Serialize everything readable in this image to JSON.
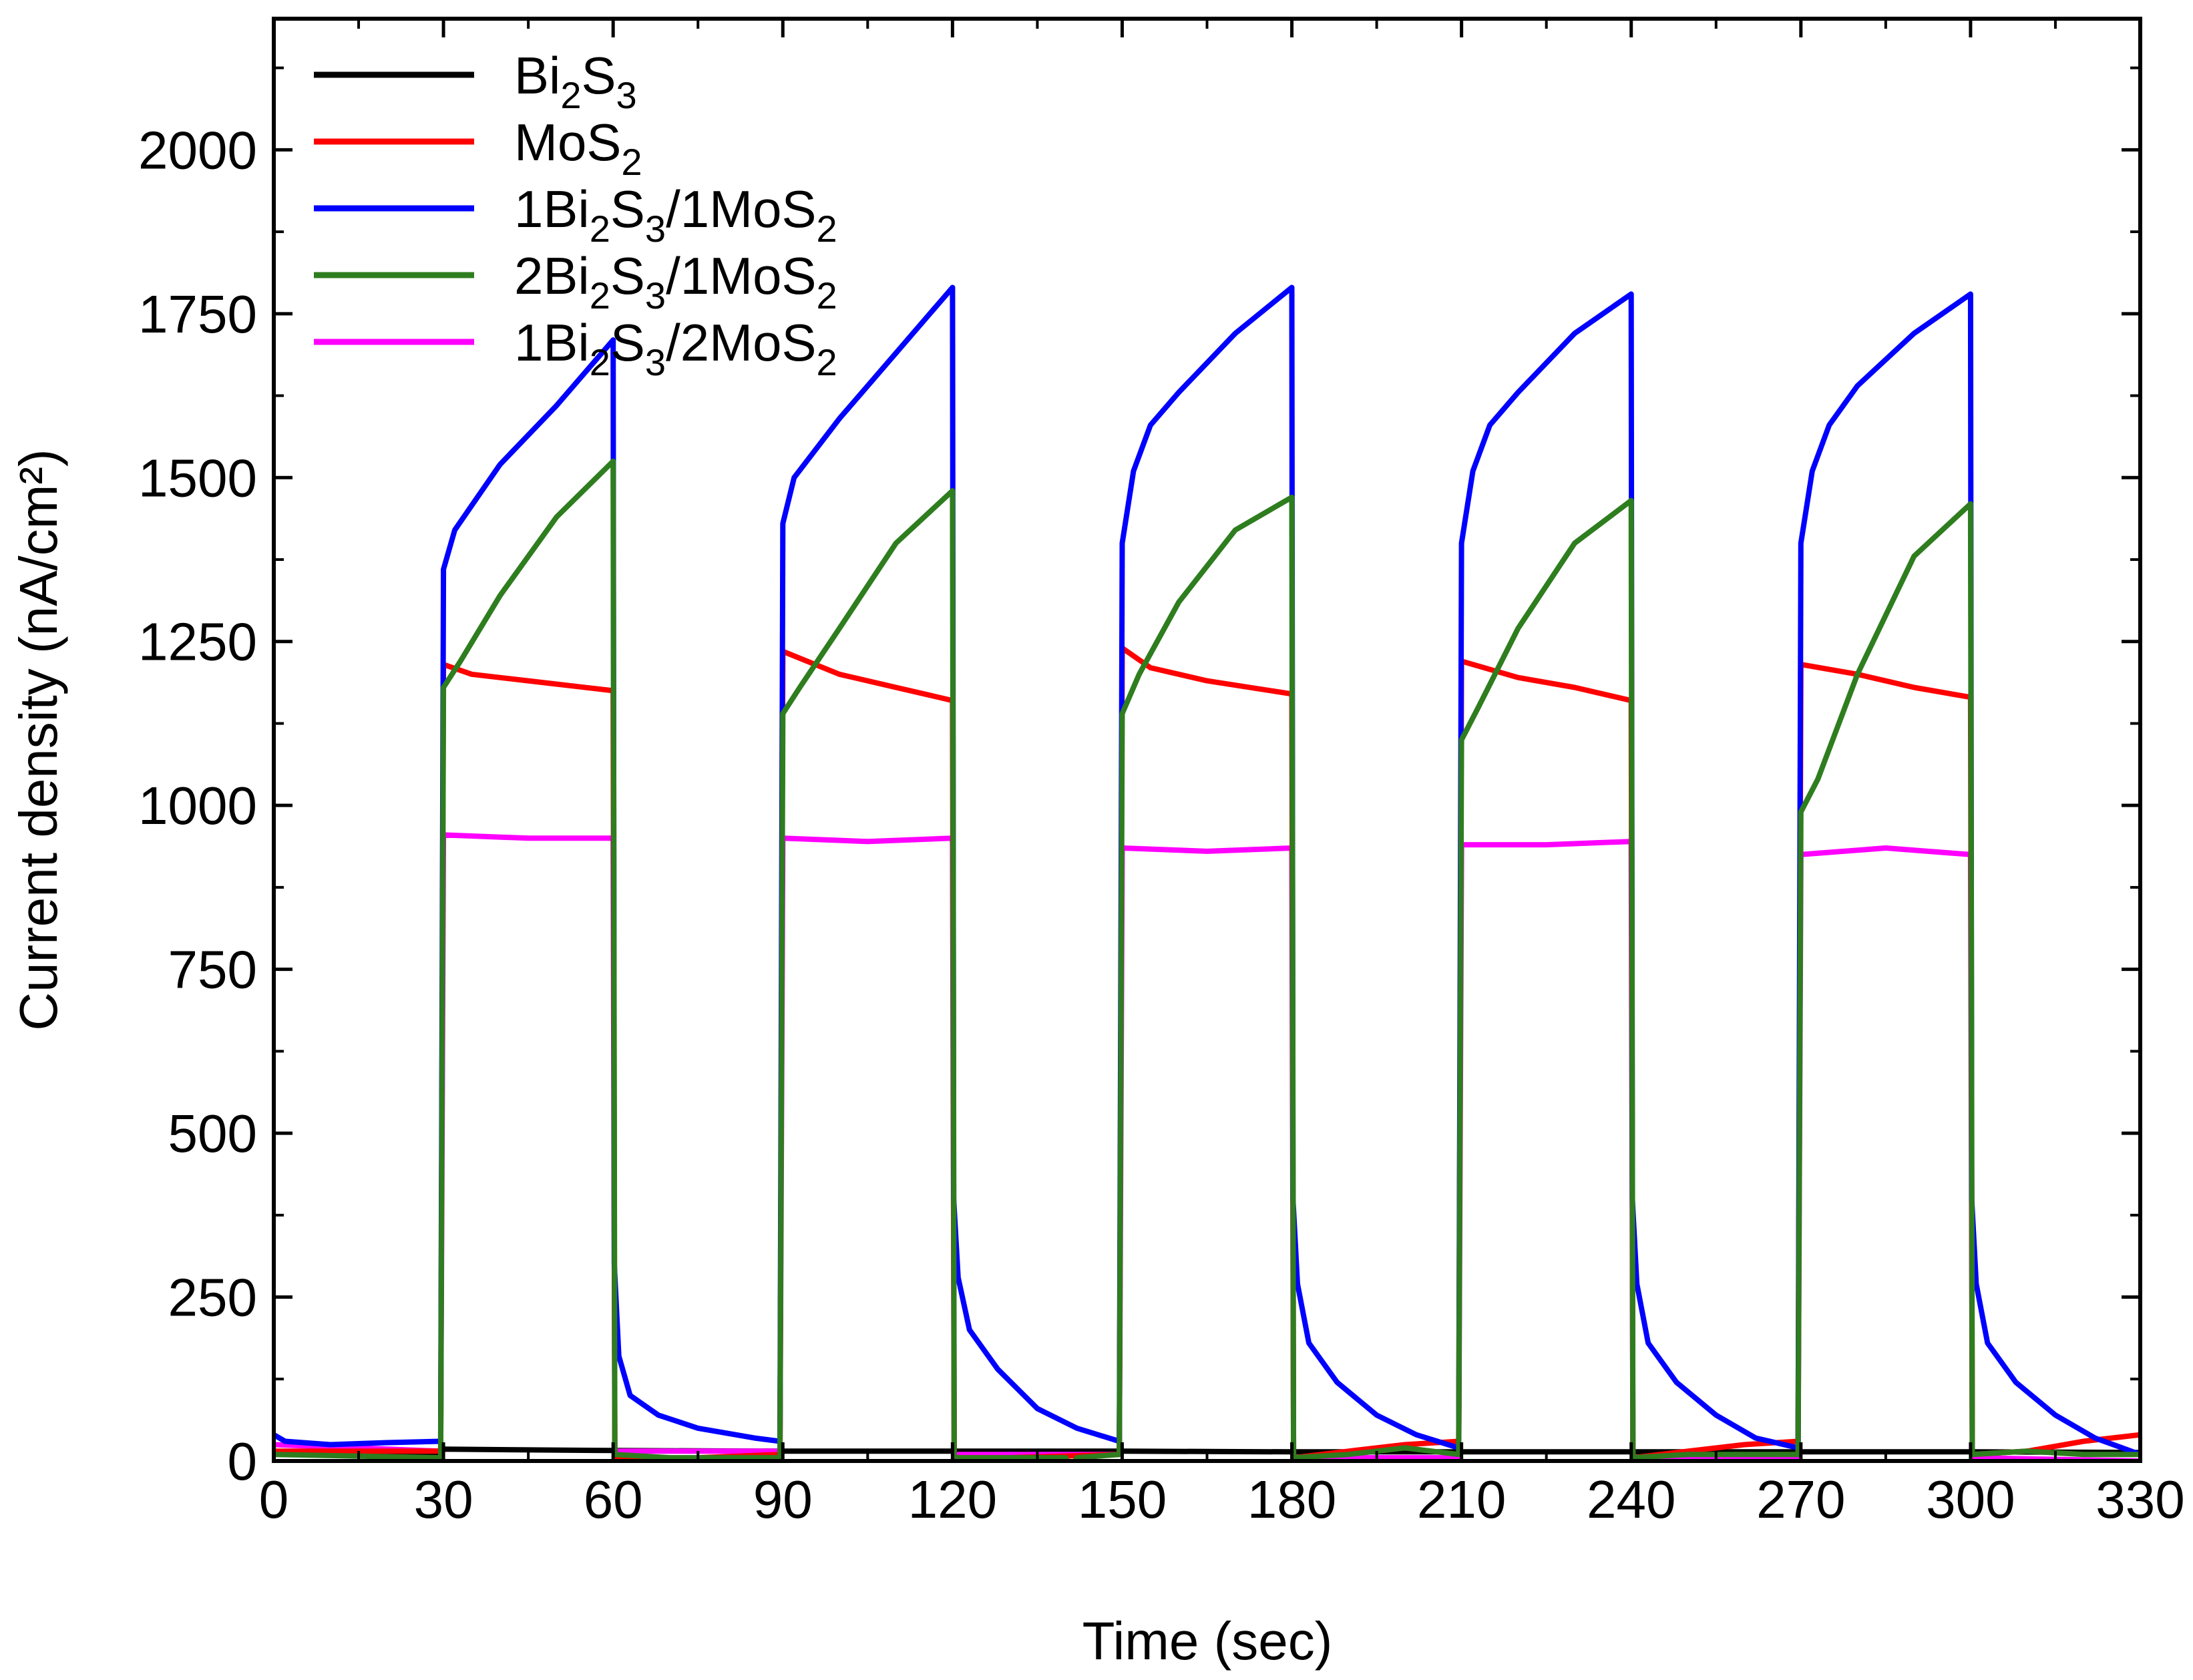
{
  "chart_data": {
    "type": "line",
    "title": "",
    "xlabel": "Time (sec)",
    "ylabel": "Current density (nA/cm²)",
    "xlim": [
      0,
      330
    ],
    "ylim": [
      0,
      2200
    ],
    "xticks": [
      0,
      30,
      60,
      90,
      120,
      150,
      180,
      210,
      240,
      270,
      300,
      330
    ],
    "yticks": [
      0,
      250,
      500,
      750,
      1000,
      1250,
      1500,
      1750,
      2000
    ],
    "legend_position": "top-left",
    "series": [
      {
        "name": "Bi2S3",
        "label_parts": [
          [
            "Bi",
            ""
          ],
          [
            "2",
            "sub"
          ],
          [
            "S",
            ""
          ],
          [
            "3",
            "sub"
          ]
        ],
        "color": "#000000",
        "points": [
          [
            0,
            12
          ],
          [
            29.5,
            12
          ],
          [
            30,
            18
          ],
          [
            60,
            16
          ],
          [
            90,
            15
          ],
          [
            120,
            15
          ],
          [
            150,
            15
          ],
          [
            180,
            14
          ],
          [
            210,
            14
          ],
          [
            240,
            14
          ],
          [
            270,
            14
          ],
          [
            300,
            14
          ],
          [
            330,
            13
          ]
        ]
      },
      {
        "name": "MoS2",
        "label_parts": [
          [
            "MoS",
            ""
          ],
          [
            "2",
            "sub"
          ]
        ],
        "color": "#ff0000",
        "points": [
          [
            0,
            15
          ],
          [
            29.5,
            15
          ],
          [
            30,
            1215
          ],
          [
            35,
            1200
          ],
          [
            45,
            1190
          ],
          [
            60,
            1175
          ],
          [
            60.3,
            5
          ],
          [
            65,
            0
          ],
          [
            75,
            5
          ],
          [
            89.5,
            10
          ],
          [
            90,
            1235
          ],
          [
            100,
            1200
          ],
          [
            110,
            1180
          ],
          [
            120,
            1160
          ],
          [
            120.3,
            5
          ],
          [
            130,
            5
          ],
          [
            149.5,
            10
          ],
          [
            150,
            1240
          ],
          [
            155,
            1210
          ],
          [
            165,
            1190
          ],
          [
            180,
            1170
          ],
          [
            180.3,
            5
          ],
          [
            190,
            15
          ],
          [
            200,
            25
          ],
          [
            209.5,
            30
          ],
          [
            210,
            1220
          ],
          [
            220,
            1195
          ],
          [
            230,
            1180
          ],
          [
            240,
            1160
          ],
          [
            240.3,
            5
          ],
          [
            250,
            15
          ],
          [
            260,
            25
          ],
          [
            269.5,
            30
          ],
          [
            270,
            1215
          ],
          [
            280,
            1200
          ],
          [
            290,
            1180
          ],
          [
            300,
            1165
          ],
          [
            300.3,
            10
          ],
          [
            310,
            15
          ],
          [
            320,
            30
          ],
          [
            330,
            40
          ]
        ]
      },
      {
        "name": "1Bi2S3/1MoS2",
        "label_parts": [
          [
            "1Bi",
            ""
          ],
          [
            "2",
            "sub"
          ],
          [
            "S",
            ""
          ],
          [
            "3",
            "sub"
          ],
          [
            "/1MoS",
            ""
          ],
          [
            "2",
            "sub"
          ]
        ],
        "color": "#0000ff",
        "points": [
          [
            0,
            40
          ],
          [
            2,
            30
          ],
          [
            10,
            25
          ],
          [
            20,
            28
          ],
          [
            29.5,
            30
          ],
          [
            30,
            1360
          ],
          [
            32,
            1420
          ],
          [
            40,
            1520
          ],
          [
            50,
            1610
          ],
          [
            60,
            1710
          ],
          [
            60.2,
            300
          ],
          [
            61,
            160
          ],
          [
            63,
            100
          ],
          [
            68,
            70
          ],
          [
            75,
            50
          ],
          [
            85,
            35
          ],
          [
            89.5,
            30
          ],
          [
            90,
            1430
          ],
          [
            92,
            1500
          ],
          [
            100,
            1590
          ],
          [
            110,
            1690
          ],
          [
            120,
            1790
          ],
          [
            120.2,
            400
          ],
          [
            121,
            280
          ],
          [
            123,
            200
          ],
          [
            128,
            140
          ],
          [
            135,
            80
          ],
          [
            142,
            50
          ],
          [
            149.5,
            30
          ],
          [
            150,
            1400
          ],
          [
            152,
            1510
          ],
          [
            155,
            1580
          ],
          [
            160,
            1630
          ],
          [
            170,
            1720
          ],
          [
            180,
            1790
          ],
          [
            180.2,
            400
          ],
          [
            181,
            270
          ],
          [
            183,
            180
          ],
          [
            188,
            120
          ],
          [
            195,
            70
          ],
          [
            202,
            40
          ],
          [
            209.5,
            20
          ],
          [
            210,
            1400
          ],
          [
            212,
            1510
          ],
          [
            215,
            1580
          ],
          [
            220,
            1630
          ],
          [
            230,
            1720
          ],
          [
            240,
            1780
          ],
          [
            240.2,
            400
          ],
          [
            241,
            270
          ],
          [
            243,
            180
          ],
          [
            248,
            120
          ],
          [
            255,
            70
          ],
          [
            262,
            35
          ],
          [
            269.5,
            20
          ],
          [
            270,
            1400
          ],
          [
            272,
            1510
          ],
          [
            275,
            1580
          ],
          [
            280,
            1640
          ],
          [
            290,
            1720
          ],
          [
            300,
            1780
          ],
          [
            300.2,
            400
          ],
          [
            301,
            270
          ],
          [
            303,
            180
          ],
          [
            308,
            120
          ],
          [
            315,
            70
          ],
          [
            322,
            35
          ],
          [
            330,
            10
          ]
        ]
      },
      {
        "name": "2Bi2S3/1MoS2",
        "label_parts": [
          [
            "2Bi",
            ""
          ],
          [
            "2",
            "sub"
          ],
          [
            "S",
            ""
          ],
          [
            "3",
            "sub"
          ],
          [
            "/1MoS",
            ""
          ],
          [
            "2",
            "sub"
          ]
        ],
        "color": "#2e7d1e",
        "points": [
          [
            0,
            10
          ],
          [
            29.5,
            5
          ],
          [
            30,
            1180
          ],
          [
            33,
            1220
          ],
          [
            40,
            1320
          ],
          [
            50,
            1440
          ],
          [
            60,
            1525
          ],
          [
            60.3,
            10
          ],
          [
            70,
            5
          ],
          [
            89.5,
            5
          ],
          [
            90,
            1140
          ],
          [
            93,
            1180
          ],
          [
            100,
            1270
          ],
          [
            110,
            1400
          ],
          [
            120,
            1480
          ],
          [
            120.3,
            5
          ],
          [
            140,
            5
          ],
          [
            141,
            -10
          ],
          [
            142,
            5
          ],
          [
            149.5,
            10
          ],
          [
            150,
            1140
          ],
          [
            153,
            1200
          ],
          [
            160,
            1310
          ],
          [
            170,
            1420
          ],
          [
            180,
            1470
          ],
          [
            180.3,
            5
          ],
          [
            190,
            10
          ],
          [
            200,
            20
          ],
          [
            209.5,
            10
          ],
          [
            210,
            1100
          ],
          [
            213,
            1150
          ],
          [
            220,
            1270
          ],
          [
            230,
            1400
          ],
          [
            240,
            1465
          ],
          [
            240.3,
            5
          ],
          [
            250,
            10
          ],
          [
            269.5,
            10
          ],
          [
            270,
            990
          ],
          [
            273,
            1040
          ],
          [
            280,
            1200
          ],
          [
            290,
            1380
          ],
          [
            300,
            1460
          ],
          [
            300.3,
            10
          ],
          [
            310,
            15
          ],
          [
            320,
            10
          ],
          [
            330,
            10
          ]
        ]
      },
      {
        "name": "1Bi2S3/2MoS2",
        "label_parts": [
          [
            "1Bi",
            ""
          ],
          [
            "2",
            "sub"
          ],
          [
            "S",
            ""
          ],
          [
            "3",
            "sub"
          ],
          [
            "/2MoS",
            ""
          ],
          [
            "2",
            "sub"
          ]
        ],
        "color": "#ff00ff",
        "points": [
          [
            0,
            25
          ],
          [
            29.5,
            15
          ],
          [
            30,
            955
          ],
          [
            45,
            950
          ],
          [
            60,
            950
          ],
          [
            60.3,
            15
          ],
          [
            89.5,
            15
          ],
          [
            90,
            950
          ],
          [
            105,
            945
          ],
          [
            120,
            950
          ],
          [
            120.3,
            10
          ],
          [
            149.5,
            10
          ],
          [
            150,
            935
          ],
          [
            165,
            930
          ],
          [
            180,
            935
          ],
          [
            180.3,
            5
          ],
          [
            209.5,
            5
          ],
          [
            210,
            940
          ],
          [
            225,
            940
          ],
          [
            240,
            945
          ],
          [
            240.3,
            5
          ],
          [
            269.5,
            5
          ],
          [
            270,
            925
          ],
          [
            285,
            935
          ],
          [
            300,
            925
          ],
          [
            300.3,
            5
          ],
          [
            330,
            0
          ]
        ]
      }
    ]
  }
}
